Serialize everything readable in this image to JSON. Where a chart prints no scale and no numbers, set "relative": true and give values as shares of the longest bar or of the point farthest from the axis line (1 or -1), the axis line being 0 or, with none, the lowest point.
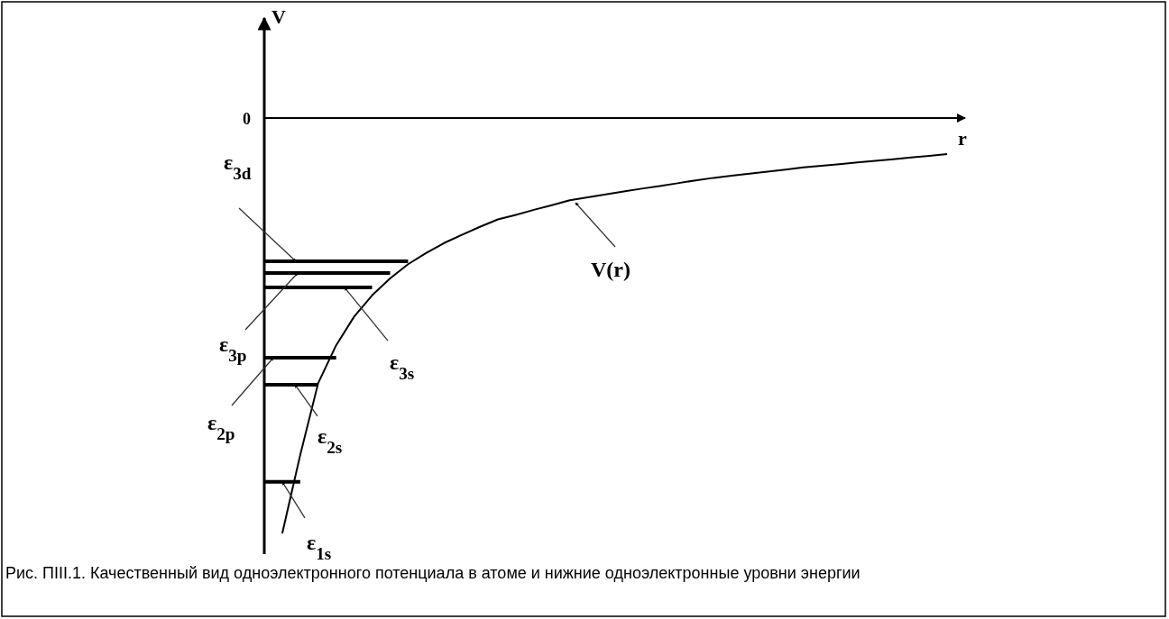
{
  "chart_data": {
    "type": "line",
    "relative": true,
    "xlabel": "r",
    "ylabel": "V",
    "grid": false,
    "legend": false,
    "marker": "none",
    "line_style": "solid",
    "categories": [
      null,
      null,
      null,
      null,
      null,
      null,
      null,
      null,
      null,
      null,
      null,
      null,
      null,
      null,
      null,
      null,
      null,
      null,
      null,
      null,
      null,
      null,
      null,
      null,
      null,
      null,
      null,
      null,
      null,
      null,
      null,
      null,
      null,
      null,
      null,
      null,
      null,
      null,
      null,
      null
    ],
    "series": [
      {
        "name": "V(r)",
        "color": "#000000",
        "values": [
          null,
          -1,
          -0.811,
          -0.638,
          -0.547,
          -0.478,
          -0.427,
          -0.386,
          -0.352,
          -0.325,
          -0.301,
          -0.281,
          -0.262,
          -0.244,
          -0.233,
          -0.221,
          -0.21,
          -0.198,
          -0.191,
          -0.184,
          -0.177,
          -0.17,
          -0.164,
          -0.157,
          -0.15,
          -0.144,
          -0.139,
          -0.134,
          -0.129,
          -0.124,
          -0.119,
          -0.115,
          -0.111,
          -0.107,
          -0.103,
          -0.099,
          -0.095,
          -0.091,
          -0.087,
          null
        ]
      },
      {
        "name": "ε$_{3d}$",
        "color": "#000000",
        "values": [
          -0.345,
          -0.345,
          -0.345,
          -0.345,
          -0.345,
          -0.345,
          -0.345,
          -0.345,
          -0.345,
          null,
          null,
          null,
          null,
          null,
          null,
          null,
          null,
          null,
          null,
          null,
          null,
          null,
          null,
          null,
          null,
          null,
          null,
          null,
          null,
          null,
          null,
          null,
          null,
          null,
          null,
          null,
          null,
          null,
          null,
          null
        ]
      },
      {
        "name": "ε$_{3p}$",
        "color": "#000000",
        "values": [
          -0.373,
          -0.373,
          -0.373,
          -0.373,
          -0.373,
          -0.373,
          -0.373,
          -0.373,
          null,
          null,
          null,
          null,
          null,
          null,
          null,
          null,
          null,
          null,
          null,
          null,
          null,
          null,
          null,
          null,
          null,
          null,
          null,
          null,
          null,
          null,
          null,
          null,
          null,
          null,
          null,
          null,
          null,
          null,
          null,
          null
        ]
      },
      {
        "name": "ε$_{3s}$",
        "color": "#000000",
        "values": [
          -0.408,
          -0.408,
          -0.408,
          -0.408,
          -0.408,
          -0.408,
          -0.408,
          null,
          null,
          null,
          null,
          null,
          null,
          null,
          null,
          null,
          null,
          null,
          null,
          null,
          null,
          null,
          null,
          null,
          null,
          null,
          null,
          null,
          null,
          null,
          null,
          null,
          null,
          null,
          null,
          null,
          null,
          null,
          null,
          null
        ]
      },
      {
        "name": "ε$_{2p}$",
        "color": "#000000",
        "values": [
          -0.577,
          -0.577,
          -0.577,
          -0.577,
          -0.577,
          null,
          null,
          null,
          null,
          null,
          null,
          null,
          null,
          null,
          null,
          null,
          null,
          null,
          null,
          null,
          null,
          null,
          null,
          null,
          null,
          null,
          null,
          null,
          null,
          null,
          null,
          null,
          null,
          null,
          null,
          null,
          null,
          null,
          null,
          null
        ]
      },
      {
        "name": "ε$_{2s}$",
        "color": "#000000",
        "values": [
          -0.642,
          -0.642,
          -0.642,
          -0.642,
          null,
          null,
          null,
          null,
          null,
          null,
          null,
          null,
          null,
          null,
          null,
          null,
          null,
          null,
          null,
          null,
          null,
          null,
          null,
          null,
          null,
          null,
          null,
          null,
          null,
          null,
          null,
          null,
          null,
          null,
          null,
          null,
          null,
          null,
          null,
          null
        ]
      },
      {
        "name": "ε$_{1s}$",
        "color": "#000000",
        "values": [
          -0.876,
          -0.876,
          -0.876,
          null,
          null,
          null,
          null,
          null,
          null,
          null,
          null,
          null,
          null,
          null,
          null,
          null,
          null,
          null,
          null,
          null,
          null,
          null,
          null,
          null,
          null,
          null,
          null,
          null,
          null,
          null,
          null,
          null,
          null,
          null,
          null,
          null,
          null,
          null,
          null,
          null
        ]
      }
    ],
    "annotations": [
      "0",
      "Рис. ПIII.1. Качественный вид одноэлектронного потенциала в атоме и нижние одноэлектронные уровни энергии"
    ]
  }
}
